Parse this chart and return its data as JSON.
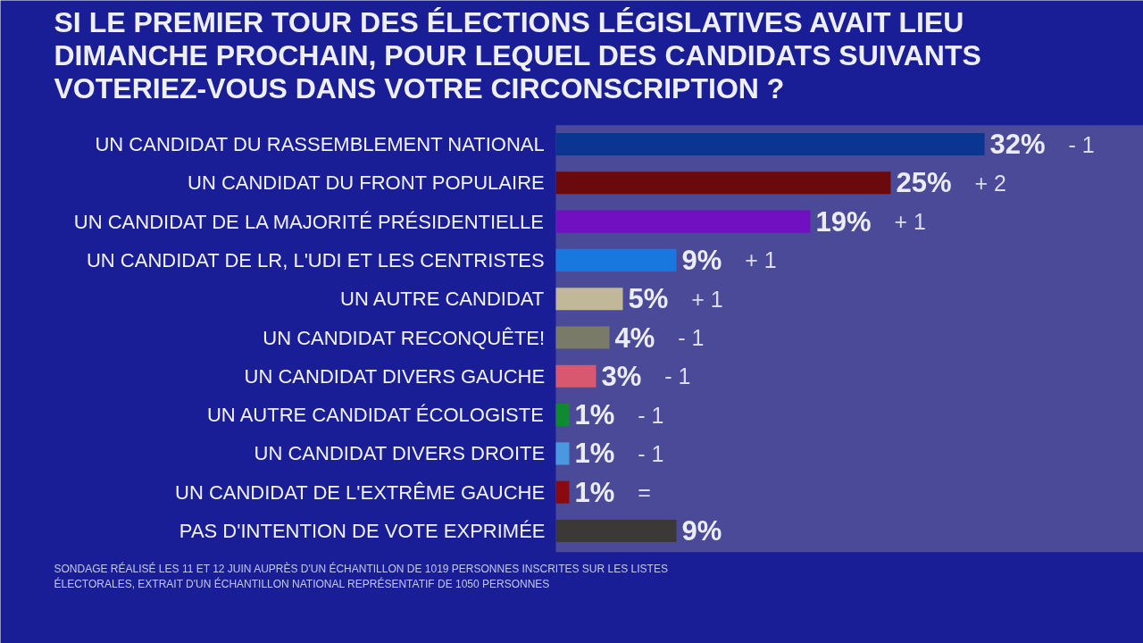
{
  "chart_data": {
    "type": "bar",
    "orientation": "horizontal",
    "title": "SI LE PREMIER TOUR DES ÉLECTIONS LÉGISLATIVES AVAIT LIEU DIMANCHE PROCHAIN, POUR LEQUEL DES CANDIDATS SUIVANTS VOTERIEZ-VOUS DANS VOTRE CIRCONSCRIPTION ?",
    "categories": [
      "UN CANDIDAT DU RASSEMBLEMENT NATIONAL",
      "UN CANDIDAT DU FRONT POPULAIRE",
      "UN CANDIDAT DE LA MAJORITÉ PRÉSIDENTIELLE",
      "UN CANDIDAT DE LR, L'UDI ET LES CENTRISTES",
      "UN AUTRE CANDIDAT",
      "UN CANDIDAT RECONQUÊTE!",
      "UN CANDIDAT DIVERS GAUCHE",
      "UN AUTRE CANDIDAT ÉCOLOGISTE",
      "UN CANDIDAT DIVERS DROITE",
      "UN CANDIDAT DE L'EXTRÊME GAUCHE",
      "PAS D'INTENTION DE VOTE EXPRIMÉE"
    ],
    "values": [
      32,
      25,
      19,
      9,
      5,
      4,
      3,
      1,
      1,
      1,
      9
    ],
    "colors": [
      "#0a3590",
      "#6a0a0c",
      "#7010c0",
      "#1878e0",
      "#c0b898",
      "#7a7a68",
      "#d85870",
      "#108a30",
      "#4a98e0",
      "#8a0a10",
      "#3c3838"
    ],
    "value_labels": [
      "32%",
      "25%",
      "19%",
      "9%",
      "5%",
      "4%",
      "3%",
      "1%",
      "1%",
      "1%",
      "9%"
    ],
    "annotations": [
      "- 1",
      "+ 2",
      "+ 1",
      "+ 1",
      "+ 1",
      "- 1",
      "- 1",
      "- 1",
      "- 1",
      "=",
      "SONDAGE RÉALISÉ LES 11 ET 12 JUIN AUPRÈS D'UN ÉCHANTILLON DE 1019 PERSONNES INSCRITES SUR LES LISTES ÉLECTORALES, EXTRAIT D'UN ÉCHANTILLON NATIONAL REPRÉSENTATIF DE 1050 PERSONNES"
    ]
  }
}
